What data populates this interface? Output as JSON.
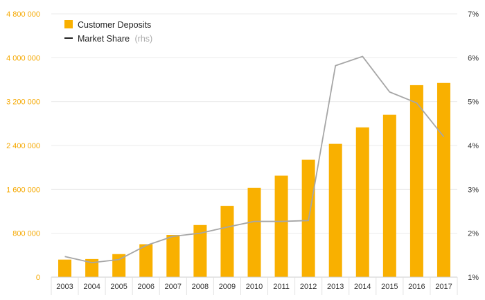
{
  "chart_data": {
    "type": "bar",
    "categories": [
      "2003",
      "2004",
      "2005",
      "2006",
      "2007",
      "2008",
      "2009",
      "2010",
      "2011",
      "2012",
      "2013",
      "2014",
      "2015",
      "2016",
      "2017"
    ],
    "series": [
      {
        "name": "Customer Deposits",
        "type": "bar",
        "axis": "left",
        "color": "#F9B000",
        "values": [
          320000,
          330000,
          420000,
          600000,
          770000,
          950000,
          1300000,
          1630000,
          1850000,
          2140000,
          2430000,
          2730000,
          2960000,
          3500000,
          3540000
        ]
      },
      {
        "name": "Market Share",
        "name_suffix": "(rhs)",
        "type": "line",
        "axis": "right",
        "color": "#A6A6A6",
        "values": [
          1.47,
          1.33,
          1.4,
          1.72,
          1.93,
          2.0,
          2.14,
          2.27,
          2.27,
          2.29,
          5.82,
          6.03,
          5.22,
          4.97,
          4.2
        ]
      }
    ],
    "y_left": {
      "ylim": [
        0,
        4800000
      ],
      "ticks": [
        0,
        800000,
        1600000,
        2400000,
        3200000,
        4000000,
        4800000
      ],
      "tick_labels": [
        "0",
        "800 000",
        "1 600 000",
        "2 400 000",
        "3 200 000",
        "4 000 000",
        "4 800 000"
      ],
      "label_color": "#F5A800"
    },
    "y_right": {
      "ylim": [
        1,
        7
      ],
      "ticks": [
        1,
        2,
        3,
        4,
        5,
        6,
        7
      ],
      "tick_labels": [
        "1%",
        "2%",
        "3%",
        "4%",
        "5%",
        "6%",
        "7%"
      ],
      "label_color": "#333333"
    },
    "grid": true,
    "legend_position": "top-left",
    "title": "",
    "xlabel": "",
    "ylabel": ""
  }
}
